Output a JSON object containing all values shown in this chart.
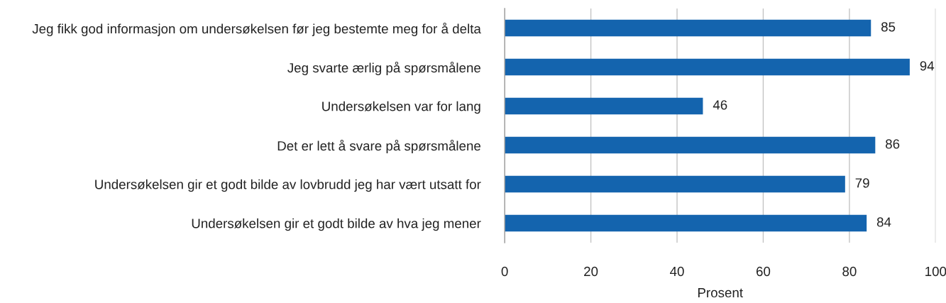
{
  "chart_data": {
    "type": "bar",
    "orientation": "horizontal",
    "categories": [
      "Jeg fikk god informasjon om undersøkelsen før jeg bestemte meg for å delta",
      "Jeg svarte ærlig på spørsmålene",
      "Undersøkelsen var for lang",
      "Det er lett å svare på spørsmålene",
      "Undersøkelsen gir et godt bilde av lovbrudd jeg har vært utsatt for",
      "Undersøkelsen gir et godt bilde av hva jeg mener"
    ],
    "values": [
      85,
      94,
      46,
      86,
      79,
      84
    ],
    "color": "#1464ae",
    "xlabel": "Prosent",
    "xlim": [
      0,
      100
    ],
    "xticks": [
      0,
      20,
      40,
      60,
      80,
      100
    ],
    "grid": "x",
    "data_labels": true
  }
}
